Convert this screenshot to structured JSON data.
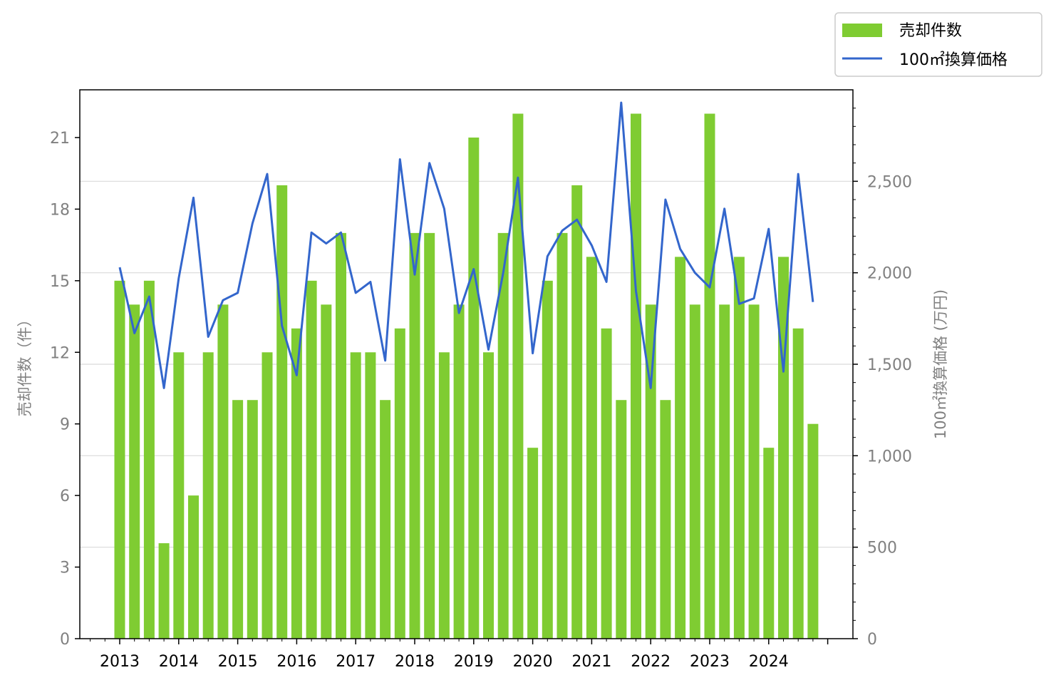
{
  "chart_data": {
    "type": "bar",
    "x_tick_labels": [
      "2013",
      "2014",
      "2015",
      "2016",
      "2017",
      "2018",
      "2019",
      "2020",
      "2021",
      "2022",
      "2023",
      "2024"
    ],
    "series": [
      {
        "name": "売却件数",
        "type": "bar",
        "axis": "left",
        "color": "#7fcc32",
        "values": [
          15,
          14,
          15,
          4,
          12,
          6,
          12,
          14,
          10,
          10,
          12,
          19,
          13,
          15,
          14,
          17,
          12,
          12,
          10,
          13,
          17,
          17,
          12,
          14,
          21,
          12,
          17,
          22,
          8,
          15,
          17,
          19,
          16,
          13,
          10,
          22,
          14,
          10,
          16,
          14,
          22,
          14,
          16,
          14,
          8,
          16,
          13,
          9
        ]
      },
      {
        "name": "100㎡換算価格",
        "type": "line",
        "axis": "right",
        "color": "#3366cc",
        "values": [
          2030,
          1670,
          1870,
          1370,
          1970,
          2410,
          1650,
          1850,
          1890,
          2270,
          2540,
          1710,
          1440,
          2220,
          2160,
          2220,
          1890,
          1950,
          1520,
          2620,
          1990,
          2600,
          2350,
          1780,
          2020,
          1580,
          2000,
          2520,
          1560,
          2090,
          2230,
          2290,
          2150,
          1950,
          2930,
          1900,
          1370,
          2400,
          2130,
          2000,
          1920,
          2350,
          1830,
          1860,
          2240,
          1460,
          2540,
          1840
        ]
      }
    ],
    "left_axis": {
      "label": "売却件数（件）",
      "ylim": [
        0,
        23
      ],
      "ticks": [
        0,
        3,
        6,
        9,
        12,
        15,
        18,
        21
      ],
      "tick_labels": [
        "0",
        "3",
        "6",
        "9",
        "12",
        "15",
        "18",
        "21"
      ]
    },
    "right_axis": {
      "label": "100㎡換算価格 (万円)",
      "ylim": [
        0,
        3000
      ],
      "ticks": [
        0,
        500,
        1000,
        1500,
        2000,
        2500
      ],
      "tick_labels": [
        "0",
        "500",
        "1,000",
        "1,500",
        "2,000",
        "2,500"
      ]
    },
    "grid": "horizontal (right axis)",
    "legend_position": "top-right, outside plot"
  }
}
